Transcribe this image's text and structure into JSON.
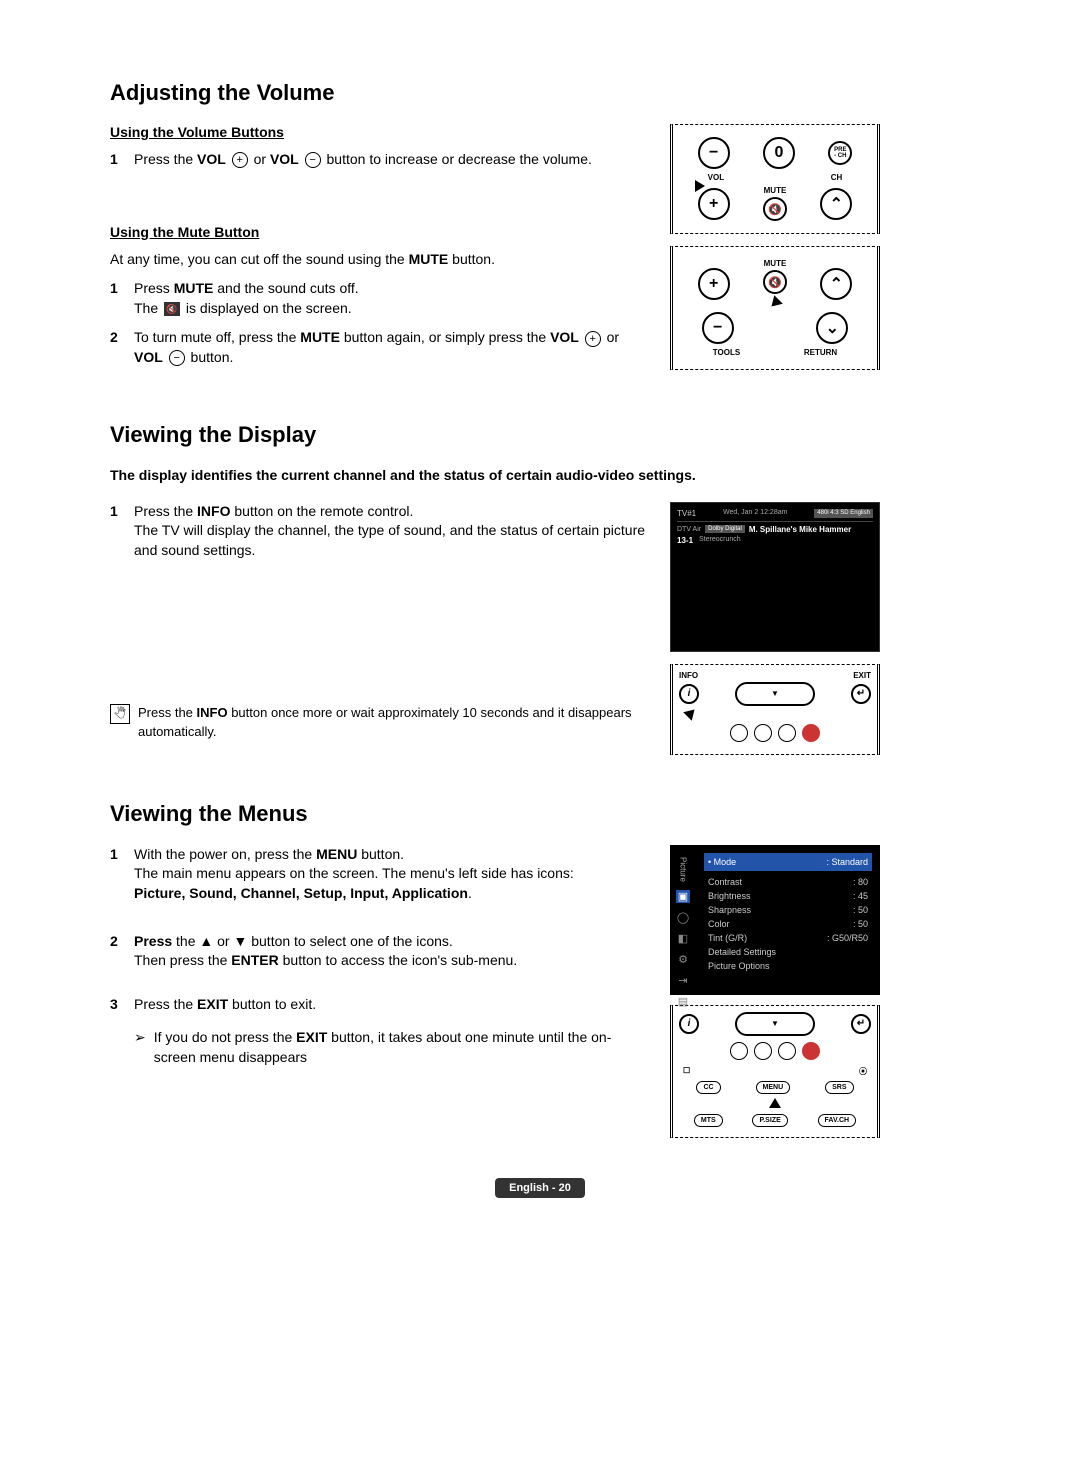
{
  "section1": {
    "title": "Adjusting the Volume",
    "sub1": {
      "heading": "Using the Volume Buttons",
      "step1_pre": "Press the ",
      "step1_b1": "VOL",
      "step1_icon1": "+",
      "step1_mid": " or ",
      "step1_b2": "VOL",
      "step1_icon2": "−",
      "step1_post": " button to increase or decrease the volume."
    },
    "sub2": {
      "heading": "Using the Mute Button",
      "intro_pre": "At any time, you can cut off the sound using the ",
      "intro_b": "MUTE",
      "intro_post": " button.",
      "step1_pre": "Press ",
      "step1_b": "MUTE",
      "step1_mid": " and the sound cuts off.",
      "step1_line2_pre": "The ",
      "step1_line2_post": " is displayed on the screen.",
      "step2_pre": "To turn mute off, press the ",
      "step2_b1": "MUTE",
      "step2_mid1": " button again, or simply press the ",
      "step2_b2": "VOL",
      "step2_icon1": "+",
      "step2_mid2": " or ",
      "step2_b3": "VOL",
      "step2_icon2": "−",
      "step2_post": " button."
    },
    "remote1": {
      "minus": "−",
      "zero": "0",
      "pre_ch": "PRE\n- CH",
      "vol": "VOL",
      "ch": "CH",
      "plus": "+",
      "up": "⌃",
      "mute": "MUTE"
    },
    "remote2": {
      "plus": "+",
      "up": "⌃",
      "mute": "MUTE",
      "mute_icon": "🔇",
      "minus": "−",
      "down": "⌄",
      "tools": "TOOLS",
      "return": "RETURN"
    }
  },
  "section2": {
    "title": "Viewing the Display",
    "intro": "The display identifies the current channel and the status of certain audio-video settings.",
    "step1_pre": "Press the ",
    "step1_b": "INFO",
    "step1_post": " button on the remote control.",
    "step1_line2": "The TV will display the channel, the type of sound, and the status of certain picture and sound settings.",
    "note_pre": "Press the ",
    "note_b": "INFO",
    "note_post": " button once more or wait approximately 10 seconds and it disappears automatically.",
    "tv": {
      "title": "TV#1",
      "date": "Wed, Jan 2 12:28am",
      "badge": "480i 4:3 SD English",
      "air": "DTV Air",
      "dolby": "Dolby Digital",
      "show": "M. Spillane's Mike Hammer",
      "ch": "13-1",
      "sub": "Stereocrunch"
    },
    "nav": {
      "info": "INFO",
      "exit": "EXIT",
      "i": "i",
      "down": "▼",
      "exit_icon": "↵"
    }
  },
  "section3": {
    "title": "Viewing the Menus",
    "step1_pre": "With the power on, press the ",
    "step1_b": "MENU",
    "step1_post": " button.",
    "step1_line2": "The main menu appears on the screen. The menu's left side has icons:",
    "step1_line3": "Picture, Sound, Channel, Setup, Input, Application",
    "step1_line3_post": ".",
    "step2_b1": "Press",
    "step2_mid": " the ▲ or ▼ button to select one of the icons.",
    "step2_line2_pre": "Then press the ",
    "step2_line2_b": "ENTER",
    "step2_line2_post": " button to access the icon's sub-menu.",
    "step3_pre": "Press the ",
    "step3_b": "EXIT",
    "step3_post": " button to exit.",
    "arrow_pre": "If you do not press the ",
    "arrow_b": "EXIT",
    "arrow_post": " button, it takes about one minute until the on-screen menu disappears",
    "menu": {
      "sidebar_label": "Picture",
      "items": [
        {
          "label": "Mode",
          "value": ": Standard",
          "hl": true
        },
        {
          "label": "Contrast",
          "value": ": 80"
        },
        {
          "label": "Brightness",
          "value": ": 45"
        },
        {
          "label": "Sharpness",
          "value": ": 50"
        },
        {
          "label": "Color",
          "value": ": 50"
        },
        {
          "label": "Tint (G/R)",
          "value": ": G50/R50"
        },
        {
          "label": "Detailed Settings",
          "value": ""
        },
        {
          "label": "Picture Options",
          "value": ""
        }
      ]
    },
    "nav2": {
      "i": "i",
      "down": "▼",
      "exit_icon": "↵",
      "cc": "CC",
      "menu": "MENU",
      "srs": "SRS",
      "mts": "MTS",
      "psize": "P.SIZE",
      "favch": "FAV.CH",
      "rec": "⦿",
      "cc_icon": "☐"
    }
  },
  "footer": "English - 20"
}
